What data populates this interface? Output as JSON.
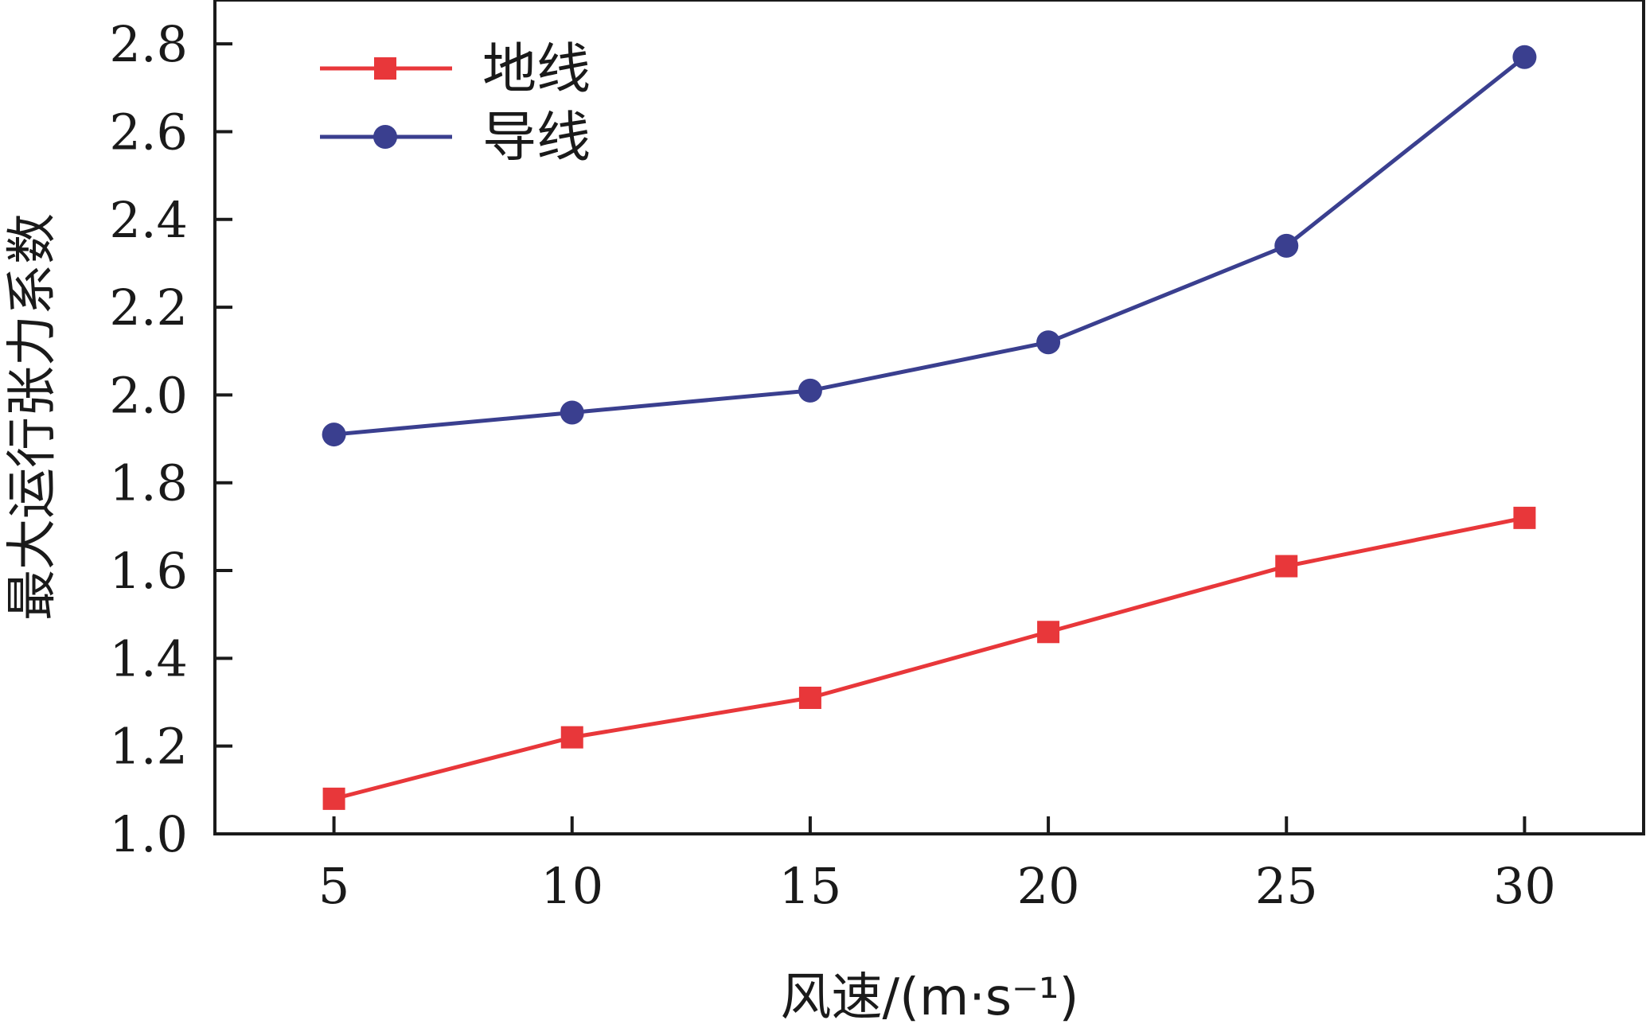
{
  "chart_data": {
    "type": "line",
    "title": "",
    "xlabel": "风速/(m·s⁻¹)",
    "ylabel": "最大运行张力系数",
    "x": [
      5,
      10,
      15,
      20,
      25,
      30
    ],
    "xticks": [
      "5",
      "10",
      "15",
      "20",
      "25",
      "30"
    ],
    "xlim": [
      2.5,
      32.5
    ],
    "yticks": [
      "1.0",
      "1.2",
      "1.4",
      "1.6",
      "1.8",
      "2.0",
      "2.2",
      "2.4",
      "2.6",
      "2.8"
    ],
    "ylim": [
      1.0,
      2.9
    ],
    "grid": false,
    "legend_position": "top-left",
    "series": [
      {
        "name": "地线",
        "marker": "square",
        "color": "#e8373a",
        "values": [
          1.08,
          1.22,
          1.31,
          1.46,
          1.61,
          1.72
        ]
      },
      {
        "name": "导线",
        "marker": "circle",
        "color": "#3a3f8f",
        "values": [
          1.91,
          1.96,
          2.01,
          2.12,
          2.34,
          2.77
        ]
      }
    ]
  }
}
